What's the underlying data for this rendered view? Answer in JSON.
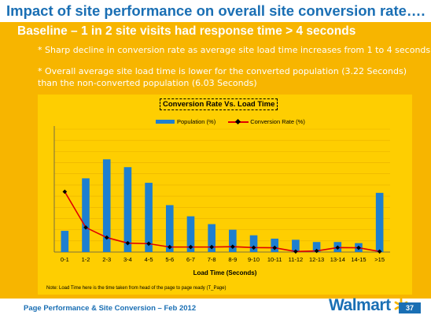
{
  "slide": {
    "title": "Impact of site performance on overall site conversion rate….",
    "subtitle": "Baseline – 1 in 2 site visits had response time > 4 seconds",
    "bullets": [
      "* Sharp decline in conversion rate as average site load time increases from 1 to 4 seconds",
      "* Overall average site load time is lower for the converted population (3.22 Seconds) than the non-converted population (6.03 Seconds)"
    ],
    "note": "Note: Load Time here is the time taken from head of the page to page ready (T_Page)",
    "footer": "Page Performance & Site Conversion – Feb 2012",
    "logo_text": "Walmart",
    "page_number": "37",
    "colors": {
      "title": "#1a6fb4",
      "background_band": "#f7b500",
      "chart_panel": "#fece01",
      "bars": "#1e7fd0",
      "line": "#e00000",
      "logo_spark": "#f7b500"
    }
  },
  "chart_data": {
    "type": "bar",
    "title": "Conversion Rate Vs. Load Time",
    "xlabel": "Load Time (Seconds)",
    "ylabel": "",
    "categories": [
      "0-1",
      "1-2",
      "2-3",
      "3-4",
      "4-5",
      "5-6",
      "6-7",
      "7-8",
      "8-9",
      "9-10",
      "10-11",
      "11-12",
      "12-13",
      "13-14",
      "14-15",
      ">15"
    ],
    "series": [
      {
        "name": "Population (%)",
        "type": "bar",
        "values": [
          1.9,
          6.6,
          8.3,
          7.6,
          6.2,
          4.2,
          3.2,
          2.5,
          2.0,
          1.5,
          1.2,
          1.1,
          0.9,
          0.9,
          0.8,
          5.3
        ]
      },
      {
        "name": "Conversion Rate (%)",
        "type": "line-marker",
        "values": [
          5.4,
          2.2,
          1.3,
          0.8,
          0.75,
          0.45,
          0.45,
          0.45,
          0.48,
          0.4,
          0.38,
          0.05,
          0.1,
          0.4,
          0.38,
          0.05
        ]
      }
    ],
    "ylim": [
      0,
      11
    ],
    "grid": true,
    "legend": "top-center"
  }
}
